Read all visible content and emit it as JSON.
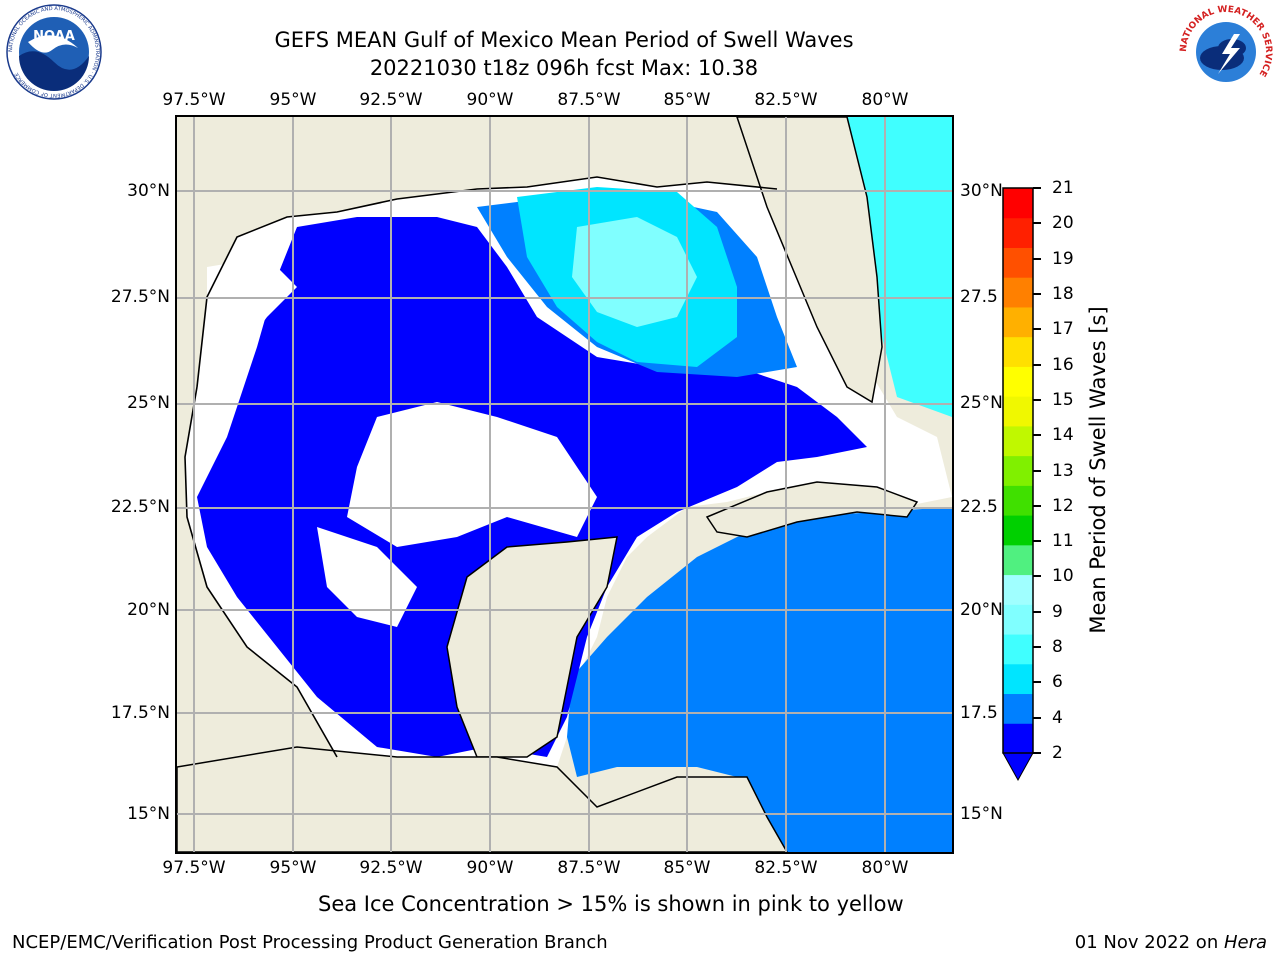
{
  "title": {
    "line1": "GEFS MEAN Gulf of Mexico Mean Period of Swell Waves",
    "line2": "20221030 t18z 096h fcst   Max: 10.38"
  },
  "map": {
    "lon_labels": [
      "97.5°W",
      "95°W",
      "92.5°W",
      "90°W",
      "87.5°W",
      "85°W",
      "82.5°W",
      "80°W"
    ],
    "lat_labels_left": [
      "30°N",
      "27.5°N",
      "25°N",
      "22.5°N",
      "20°N",
      "17.5°N",
      "15°N"
    ],
    "lat_labels_right": [
      "30°N",
      "27.5",
      "25°N",
      "22.5",
      "20°N",
      "17.5",
      "15°N"
    ],
    "land_color": "#eeecdc"
  },
  "colorbar": {
    "label": "Mean Period of Swell Waves [s]",
    "ticks": [
      "21",
      "20",
      "19",
      "18",
      "17",
      "16",
      "15",
      "14",
      "13",
      "12",
      "11",
      "10",
      "9",
      "8",
      "6",
      "4",
      "2"
    ],
    "colors": [
      "#0000ff",
      "#0080ff",
      "#00e5ff",
      "#40ffff",
      "#80ffff",
      "#a0ffff",
      "#50f080",
      "#00d000",
      "#40e000",
      "#80f000",
      "#c0f800",
      "#f0f800",
      "#ffff00",
      "#ffe000",
      "#ffb000",
      "#ff8000",
      "#ff5000",
      "#ff2000",
      "#ff0000"
    ]
  },
  "subtitle": "Sea Ice Concentration > 15% is shown in pink to yellow",
  "footer": {
    "left": "NCEP/EMC/Verification Post Processing Product Generation Branch",
    "right_prefix": "01 Nov 2022 on ",
    "right_italic": "Hera"
  },
  "logos": {
    "noaa": "NOAA",
    "noaa_ring": "NATIONAL OCEANIC AND ATMOSPHERIC ADMINISTRATION · U.S. DEPARTMENT OF COMMERCE",
    "nws_ring": "NATIONAL WEATHER SERVICE"
  }
}
